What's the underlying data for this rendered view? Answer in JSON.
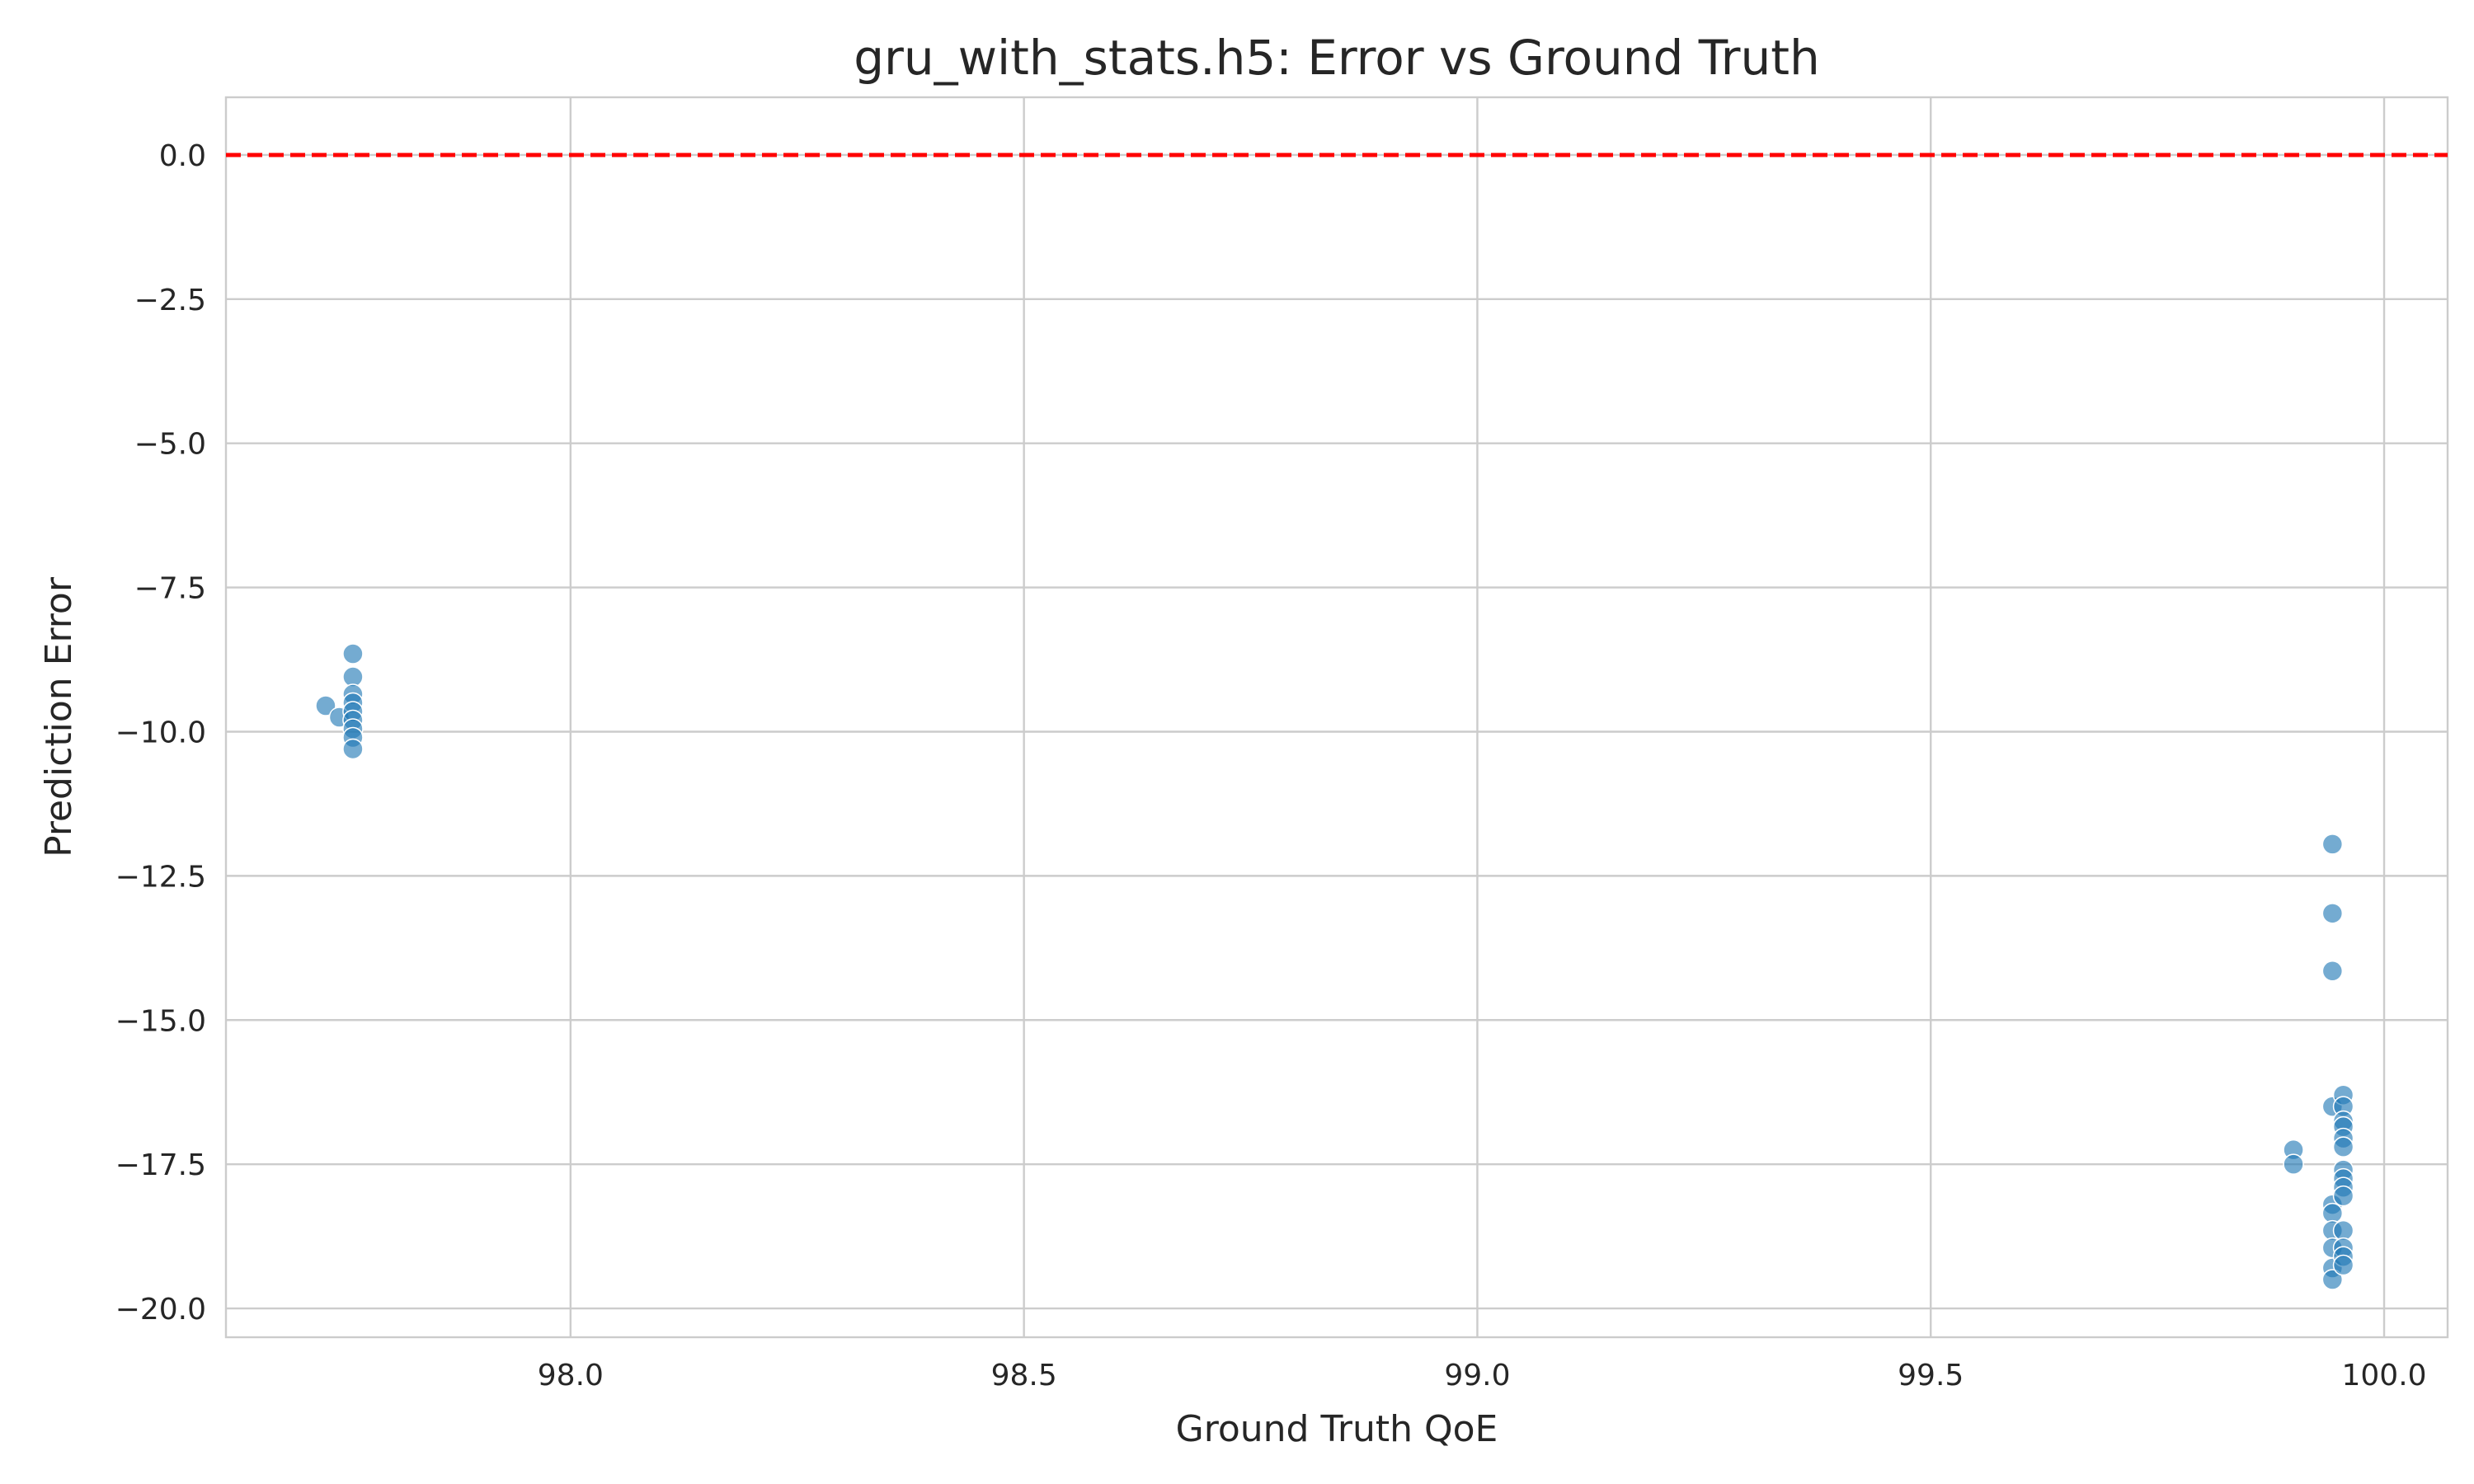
{
  "chart_data": {
    "type": "scatter",
    "title": "gru_with_stats.h5: Error vs Ground Truth",
    "xlabel": "Ground Truth QoE",
    "ylabel": "Prediction Error",
    "xlim": [
      97.62,
      100.07
    ],
    "ylim": [
      -20.5,
      1.0
    ],
    "xticks": [
      98.0,
      98.5,
      99.0,
      99.5,
      100.0
    ],
    "xtick_labels": [
      "98.0",
      "98.5",
      "99.0",
      "99.5",
      "100.0"
    ],
    "yticks": [
      0.0,
      -2.5,
      -5.0,
      -7.5,
      -10.0,
      -12.5,
      -15.0,
      -17.5,
      -20.0
    ],
    "ytick_labels": [
      "0.0",
      "−2.5",
      "−5.0",
      "−7.5",
      "−10.0",
      "−12.5",
      "−15.0",
      "−17.5",
      "−20.0"
    ],
    "grid": true,
    "point_color": "#1f77b4",
    "point_opacity": 0.62,
    "reference_line": {
      "y": 0.0,
      "color": "#ff0000",
      "style": "dashed"
    },
    "points": [
      {
        "x": 97.73,
        "y": -9.55
      },
      {
        "x": 97.745,
        "y": -9.75
      },
      {
        "x": 97.76,
        "y": -8.65
      },
      {
        "x": 97.76,
        "y": -9.05
      },
      {
        "x": 97.76,
        "y": -9.35
      },
      {
        "x": 97.76,
        "y": -9.5
      },
      {
        "x": 97.76,
        "y": -9.65
      },
      {
        "x": 97.76,
        "y": -9.8
      },
      {
        "x": 97.76,
        "y": -9.95
      },
      {
        "x": 97.76,
        "y": -10.1
      },
      {
        "x": 97.76,
        "y": -10.3
      },
      {
        "x": 99.9,
        "y": -17.25
      },
      {
        "x": 99.9,
        "y": -17.5
      },
      {
        "x": 99.943,
        "y": -11.95
      },
      {
        "x": 99.943,
        "y": -13.15
      },
      {
        "x": 99.943,
        "y": -14.15
      },
      {
        "x": 99.943,
        "y": -16.5
      },
      {
        "x": 99.943,
        "y": -18.2
      },
      {
        "x": 99.943,
        "y": -18.35
      },
      {
        "x": 99.943,
        "y": -18.65
      },
      {
        "x": 99.943,
        "y": -18.95
      },
      {
        "x": 99.943,
        "y": -19.3
      },
      {
        "x": 99.943,
        "y": -19.5
      },
      {
        "x": 99.955,
        "y": -16.3
      },
      {
        "x": 99.955,
        "y": -16.5
      },
      {
        "x": 99.955,
        "y": -16.75
      },
      {
        "x": 99.955,
        "y": -16.85
      },
      {
        "x": 99.955,
        "y": -17.05
      },
      {
        "x": 99.955,
        "y": -17.2
      },
      {
        "x": 99.955,
        "y": -17.6
      },
      {
        "x": 99.955,
        "y": -17.75
      },
      {
        "x": 99.955,
        "y": -17.9
      },
      {
        "x": 99.955,
        "y": -18.05
      },
      {
        "x": 99.955,
        "y": -18.65
      },
      {
        "x": 99.955,
        "y": -18.95
      },
      {
        "x": 99.955,
        "y": -19.1
      },
      {
        "x": 99.955,
        "y": -19.25
      }
    ]
  }
}
